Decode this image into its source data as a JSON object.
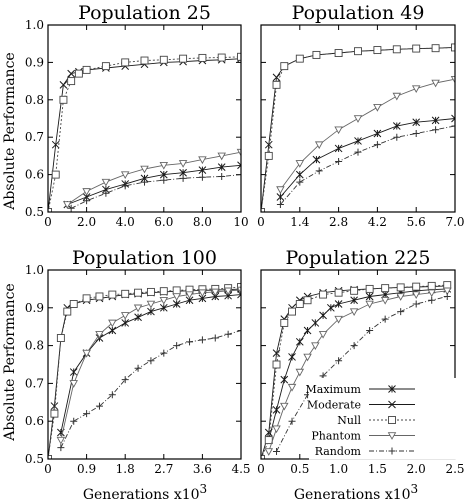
{
  "ylabel": "Absolute Performance",
  "xlabel": "Generations x10",
  "xlabel_exp": "3",
  "legend": {
    "placement": "bottom-right of Population 225 panel",
    "entries": [
      "Maximum",
      "Moderate",
      "Null",
      "Phantom",
      "Random"
    ]
  },
  "chart_data": [
    {
      "type": "line",
      "title": "Population 25",
      "xlim": [
        0,
        10
      ],
      "ylim": [
        0.5,
        1.0
      ],
      "xticks": [
        0,
        2,
        4,
        6,
        8,
        10
      ],
      "xticklabels": [
        "0",
        "2.0",
        "4.0",
        "6.0",
        "8.0",
        "10"
      ],
      "yticks": [
        0.5,
        0.6,
        0.7,
        0.8,
        0.9,
        1.0
      ],
      "yticklabels": [
        "0.5",
        "0.6",
        "0.7",
        "0.8",
        "0.9",
        "1.0"
      ],
      "series": [
        {
          "name": "Maximum",
          "marker": "asterisk",
          "dash": "none",
          "x": [
            1,
            2,
            3,
            4,
            5,
            6,
            7,
            8,
            9,
            10
          ],
          "y": [
            0.52,
            0.54,
            0.56,
            0.575,
            0.59,
            0.6,
            0.605,
            0.612,
            0.62,
            0.625
          ]
        },
        {
          "name": "Moderate",
          "marker": "x",
          "dash": "none",
          "x": [
            0,
            0.4,
            0.8,
            1.2,
            1.6,
            2,
            3,
            4,
            5,
            6,
            7,
            8,
            9,
            10
          ],
          "y": [
            0.5,
            0.68,
            0.84,
            0.87,
            0.875,
            0.88,
            0.885,
            0.89,
            0.895,
            0.9,
            0.902,
            0.905,
            0.907,
            0.91
          ]
        },
        {
          "name": "Null",
          "marker": "square",
          "dash": "2,2",
          "x": [
            0,
            0.4,
            0.8,
            1.2,
            1.6,
            2,
            3,
            4,
            5,
            6,
            7,
            8,
            9,
            10
          ],
          "y": [
            0.5,
            0.6,
            0.8,
            0.85,
            0.87,
            0.88,
            0.89,
            0.9,
            0.905,
            0.907,
            0.91,
            0.912,
            0.913,
            0.915
          ]
        },
        {
          "name": "Phantom",
          "marker": "triangle",
          "dash": "none",
          "x": [
            1,
            2,
            3,
            4,
            5,
            6,
            7,
            8,
            9,
            10
          ],
          "y": [
            0.52,
            0.555,
            0.58,
            0.6,
            0.615,
            0.625,
            0.63,
            0.64,
            0.65,
            0.66
          ]
        },
        {
          "name": "Random",
          "marker": "plus",
          "dash": "5,2,1,2",
          "x": [
            1.2,
            2,
            3,
            4,
            5,
            6,
            7,
            8,
            9,
            10
          ],
          "y": [
            0.51,
            0.53,
            0.55,
            0.57,
            0.58,
            0.585,
            0.59,
            0.593,
            0.595,
            0.6
          ]
        }
      ]
    },
    {
      "type": "line",
      "title": "Population 49",
      "xlim": [
        0,
        7
      ],
      "ylim": [
        0.5,
        1.0
      ],
      "xticks": [
        0,
        1.4,
        2.8,
        4.2,
        5.6,
        7
      ],
      "xticklabels": [
        "0",
        "1.4",
        "2.8",
        "4.2",
        "5.6",
        "7.0"
      ],
      "yticks": [
        0.5,
        0.6,
        0.7,
        0.8,
        0.9,
        1.0
      ],
      "yticklabels": [
        "",
        "",
        "",
        "",
        "",
        ""
      ],
      "series": [
        {
          "name": "Maximum",
          "marker": "asterisk",
          "dash": "none",
          "x": [
            0.7,
            1.4,
            2,
            2.8,
            3.5,
            4.2,
            4.9,
            5.6,
            6.3,
            7
          ],
          "y": [
            0.54,
            0.6,
            0.64,
            0.67,
            0.69,
            0.71,
            0.73,
            0.74,
            0.745,
            0.75
          ]
        },
        {
          "name": "Moderate",
          "marker": "x",
          "dash": "none",
          "x": [
            0,
            0.28,
            0.56,
            0.84,
            1.4,
            2,
            2.8,
            3.5,
            4.2,
            4.9,
            5.6,
            6.3,
            7
          ],
          "y": [
            0.5,
            0.68,
            0.86,
            0.89,
            0.91,
            0.92,
            0.925,
            0.93,
            0.932,
            0.935,
            0.937,
            0.938,
            0.94
          ]
        },
        {
          "name": "Null",
          "marker": "square",
          "dash": "2,2",
          "x": [
            0,
            0.28,
            0.56,
            0.84,
            1.4,
            2,
            2.8,
            3.5,
            4.2,
            4.9,
            5.6,
            6.3,
            7
          ],
          "y": [
            0.5,
            0.65,
            0.84,
            0.89,
            0.91,
            0.92,
            0.925,
            0.93,
            0.933,
            0.935,
            0.937,
            0.938,
            0.94
          ]
        },
        {
          "name": "Phantom",
          "marker": "triangle",
          "dash": "none",
          "x": [
            0.7,
            1.4,
            2.1,
            2.8,
            3.5,
            4.2,
            4.9,
            5.6,
            6.3,
            7
          ],
          "y": [
            0.56,
            0.63,
            0.68,
            0.72,
            0.75,
            0.78,
            0.81,
            0.83,
            0.845,
            0.855
          ]
        },
        {
          "name": "Random",
          "marker": "plus",
          "dash": "5,2,1,2",
          "x": [
            0.7,
            1.4,
            2.1,
            2.8,
            3.5,
            4.2,
            4.9,
            5.6,
            6.3,
            7
          ],
          "y": [
            0.52,
            0.58,
            0.61,
            0.635,
            0.66,
            0.68,
            0.7,
            0.71,
            0.72,
            0.73
          ]
        }
      ]
    },
    {
      "type": "line",
      "title": "Population 100",
      "xlim": [
        0,
        4.5
      ],
      "ylim": [
        0.5,
        1.0
      ],
      "xticks": [
        0,
        0.9,
        1.8,
        2.7,
        3.6,
        4.5
      ],
      "xticklabels": [
        "0",
        "0.9",
        "1.8",
        "2.7",
        "3.6",
        "4.5"
      ],
      "yticks": [
        0.5,
        0.6,
        0.7,
        0.8,
        0.9,
        1.0
      ],
      "yticklabels": [
        "0.5",
        "0.6",
        "0.7",
        "0.8",
        "0.9",
        "1.0"
      ],
      "series": [
        {
          "name": "Maximum",
          "marker": "asterisk",
          "dash": "none",
          "x": [
            0.3,
            0.6,
            0.9,
            1.2,
            1.5,
            1.8,
            2.1,
            2.4,
            2.7,
            3.0,
            3.3,
            3.6,
            3.9,
            4.2,
            4.5
          ],
          "y": [
            0.57,
            0.73,
            0.78,
            0.82,
            0.84,
            0.86,
            0.875,
            0.89,
            0.9,
            0.91,
            0.92,
            0.925,
            0.93,
            0.932,
            0.935
          ]
        },
        {
          "name": "Moderate",
          "marker": "x",
          "dash": "none",
          "x": [
            0,
            0.15,
            0.3,
            0.45,
            0.6,
            0.9,
            1.2,
            1.5,
            1.8,
            2.1,
            2.4,
            2.7,
            3.0,
            3.3,
            3.6,
            3.9,
            4.2,
            4.5
          ],
          "y": [
            0.5,
            0.64,
            0.82,
            0.9,
            0.91,
            0.92,
            0.925,
            0.93,
            0.935,
            0.937,
            0.94,
            0.942,
            0.944,
            0.945,
            0.946,
            0.947,
            0.948,
            0.95
          ]
        },
        {
          "name": "Null",
          "marker": "square",
          "dash": "2,2",
          "x": [
            0,
            0.15,
            0.3,
            0.45,
            0.6,
            0.9,
            1.2,
            1.5,
            1.8,
            2.1,
            2.4,
            2.7,
            3.0,
            3.3,
            3.6,
            3.9,
            4.2,
            4.5
          ],
          "y": [
            0.5,
            0.62,
            0.82,
            0.89,
            0.91,
            0.925,
            0.93,
            0.935,
            0.937,
            0.94,
            0.942,
            0.944,
            0.946,
            0.948,
            0.949,
            0.95,
            0.952,
            0.955
          ]
        },
        {
          "name": "Phantom",
          "marker": "triangle",
          "dash": "none",
          "x": [
            0.3,
            0.6,
            0.9,
            1.2,
            1.5,
            1.8,
            2.1,
            2.4,
            2.7,
            3.0,
            3.3,
            3.6,
            3.9,
            4.2,
            4.5
          ],
          "y": [
            0.55,
            0.7,
            0.78,
            0.83,
            0.86,
            0.88,
            0.9,
            0.91,
            0.92,
            0.93,
            0.935,
            0.94,
            0.942,
            0.945,
            0.947
          ]
        },
        {
          "name": "Random",
          "marker": "plus",
          "dash": "5,2,1,2",
          "x": [
            0.3,
            0.6,
            0.9,
            1.2,
            1.5,
            1.8,
            2.1,
            2.4,
            2.7,
            3.0,
            3.3,
            3.6,
            3.9,
            4.2,
            4.5
          ],
          "y": [
            0.53,
            0.6,
            0.62,
            0.64,
            0.67,
            0.71,
            0.74,
            0.76,
            0.78,
            0.8,
            0.81,
            0.815,
            0.82,
            0.83,
            0.84
          ]
        }
      ]
    },
    {
      "type": "line",
      "title": "Population 225",
      "xlim": [
        0,
        2.5
      ],
      "ylim": [
        0.5,
        1.0
      ],
      "xticks": [
        0,
        0.5,
        1.0,
        1.5,
        2.0,
        2.5
      ],
      "xticklabels": [
        "0",
        "0.5",
        "1.0",
        "1.5",
        "2.0",
        "2.5"
      ],
      "yticks": [
        0.5,
        0.6,
        0.7,
        0.8,
        0.9,
        1.0
      ],
      "yticklabels": [
        "",
        "",
        "",
        "",
        "",
        ""
      ],
      "series": [
        {
          "name": "Maximum",
          "marker": "asterisk",
          "dash": "none",
          "x": [
            0.1,
            0.2,
            0.3,
            0.4,
            0.5,
            0.6,
            0.7,
            0.8,
            0.9,
            1.0,
            1.2,
            1.4,
            1.6,
            1.8,
            2.0,
            2.2,
            2.4
          ],
          "y": [
            0.55,
            0.63,
            0.71,
            0.77,
            0.81,
            0.84,
            0.86,
            0.88,
            0.9,
            0.91,
            0.92,
            0.93,
            0.935,
            0.94,
            0.945,
            0.948,
            0.95
          ]
        },
        {
          "name": "Moderate",
          "marker": "x",
          "dash": "none",
          "x": [
            0,
            0.1,
            0.2,
            0.3,
            0.4,
            0.5,
            0.6,
            0.8,
            1.0,
            1.2,
            1.4,
            1.6,
            1.8,
            2.0,
            2.2,
            2.4
          ],
          "y": [
            0.5,
            0.57,
            0.78,
            0.87,
            0.9,
            0.92,
            0.93,
            0.94,
            0.945,
            0.948,
            0.95,
            0.952,
            0.954,
            0.955,
            0.956,
            0.958
          ]
        },
        {
          "name": "Null",
          "marker": "square",
          "dash": "2,2",
          "x": [
            0,
            0.1,
            0.2,
            0.3,
            0.4,
            0.5,
            0.6,
            0.8,
            1.0,
            1.2,
            1.4,
            1.6,
            1.8,
            2.0,
            2.2,
            2.4
          ],
          "y": [
            0.5,
            0.55,
            0.75,
            0.86,
            0.89,
            0.91,
            0.92,
            0.935,
            0.94,
            0.945,
            0.95,
            0.952,
            0.954,
            0.956,
            0.958,
            0.96
          ]
        },
        {
          "name": "Phantom",
          "marker": "triangle",
          "dash": "none",
          "x": [
            0.1,
            0.2,
            0.3,
            0.4,
            0.5,
            0.6,
            0.7,
            0.8,
            1.0,
            1.2,
            1.4,
            1.6,
            1.8,
            2.0,
            2.2,
            2.4
          ],
          "y": [
            0.52,
            0.58,
            0.64,
            0.69,
            0.73,
            0.77,
            0.8,
            0.83,
            0.87,
            0.89,
            0.91,
            0.92,
            0.93,
            0.935,
            0.94,
            0.945
          ]
        },
        {
          "name": "Random",
          "marker": "plus",
          "dash": "5,2,1,2",
          "x": [
            0.2,
            0.4,
            0.6,
            0.8,
            1.0,
            1.2,
            1.4,
            1.6,
            1.8,
            2.0,
            2.2,
            2.4
          ],
          "y": [
            0.52,
            0.6,
            0.67,
            0.72,
            0.76,
            0.8,
            0.84,
            0.87,
            0.89,
            0.91,
            0.92,
            0.93
          ]
        }
      ]
    }
  ]
}
